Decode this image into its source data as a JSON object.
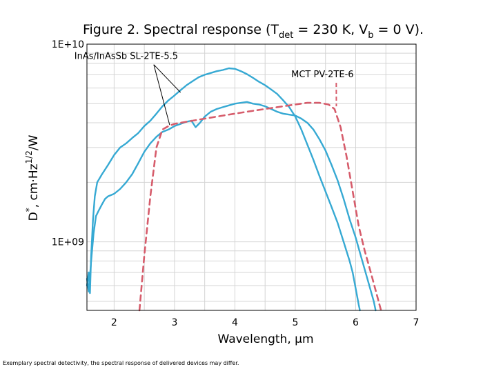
{
  "chart_data": {
    "type": "line",
    "title": {
      "main": "Figure 2. Spectral response (T",
      "sub1": "det",
      "mid": " = 230 K, V",
      "sub2": "b",
      "end": " = 0 V)."
    },
    "xlabel": "Wavelength, µm",
    "ylabel": {
      "d": "D",
      "star": "*",
      "unit": ", cm·Hz",
      "exp": "1/2",
      "tail": "/W"
    },
    "xlim": [
      1.55,
      7
    ],
    "ylim": [
      450000000,
      10000000000
    ],
    "yscale": "log",
    "grid": true,
    "x_ticks": [
      2,
      3,
      4,
      5,
      6,
      7
    ],
    "x_tick_labels": [
      "2",
      "3",
      "4",
      "5",
      "6",
      "7"
    ],
    "y_ticks": [
      1000000000,
      10000000000
    ],
    "y_tick_labels": [
      "1E+09",
      "1E+10"
    ],
    "colors": {
      "sl": "#36a9d3",
      "mct": "#d65c6b",
      "grid": "#d4d4d4",
      "frame": "#000000"
    },
    "series": [
      {
        "name": "InAs/InAsSb SL-2TE-5.5",
        "style": "solid",
        "points": [
          [
            1.55,
            600000000
          ],
          [
            1.58,
            700000000
          ],
          [
            1.6,
            550000000
          ],
          [
            1.62,
            850000000
          ],
          [
            1.65,
            1300000000
          ],
          [
            1.68,
            1700000000
          ],
          [
            1.72,
            2000000000
          ],
          [
            1.8,
            2200000000
          ],
          [
            1.9,
            2450000000
          ],
          [
            2.0,
            2750000000
          ],
          [
            2.1,
            3000000000
          ],
          [
            2.2,
            3150000000
          ],
          [
            2.3,
            3350000000
          ],
          [
            2.4,
            3550000000
          ],
          [
            2.5,
            3850000000
          ],
          [
            2.6,
            4100000000
          ],
          [
            2.7,
            4450000000
          ],
          [
            2.8,
            4850000000
          ],
          [
            2.9,
            5200000000
          ],
          [
            3.0,
            5500000000
          ],
          [
            3.1,
            5850000000
          ],
          [
            3.2,
            6200000000
          ],
          [
            3.3,
            6500000000
          ],
          [
            3.4,
            6800000000
          ],
          [
            3.5,
            7000000000
          ],
          [
            3.6,
            7150000000
          ],
          [
            3.7,
            7300000000
          ],
          [
            3.8,
            7400000000
          ],
          [
            3.9,
            7550000000
          ],
          [
            4.0,
            7500000000
          ],
          [
            4.1,
            7300000000
          ],
          [
            4.2,
            7050000000
          ],
          [
            4.3,
            6750000000
          ],
          [
            4.4,
            6450000000
          ],
          [
            4.5,
            6200000000
          ],
          [
            4.6,
            5900000000
          ],
          [
            4.7,
            5600000000
          ],
          [
            4.8,
            5200000000
          ],
          [
            4.9,
            4800000000
          ],
          [
            5.0,
            4300000000
          ],
          [
            5.1,
            3700000000
          ],
          [
            5.2,
            3100000000
          ],
          [
            5.3,
            2600000000
          ],
          [
            5.4,
            2150000000
          ],
          [
            5.5,
            1800000000
          ],
          [
            5.6,
            1500000000
          ],
          [
            5.7,
            1250000000
          ],
          [
            5.8,
            1000000000
          ],
          [
            5.9,
            800000000
          ],
          [
            5.95,
            700000000
          ],
          [
            6.0,
            580000000
          ],
          [
            6.05,
            480000000
          ],
          [
            6.07,
            450000000
          ]
        ]
      },
      {
        "name": "InAs/InAsSb SL-2TE-5.5",
        "style": "solid",
        "points": [
          [
            1.55,
            650000000
          ],
          [
            1.58,
            560000000
          ],
          [
            1.62,
            800000000
          ],
          [
            1.66,
            1100000000
          ],
          [
            1.7,
            1350000000
          ],
          [
            1.75,
            1450000000
          ],
          [
            1.8,
            1550000000
          ],
          [
            1.85,
            1650000000
          ],
          [
            1.9,
            1700000000
          ],
          [
            2.0,
            1750000000
          ],
          [
            2.1,
            1850000000
          ],
          [
            2.2,
            2000000000
          ],
          [
            2.3,
            2200000000
          ],
          [
            2.4,
            2500000000
          ],
          [
            2.5,
            2850000000
          ],
          [
            2.6,
            3150000000
          ],
          [
            2.7,
            3400000000
          ],
          [
            2.8,
            3600000000
          ],
          [
            2.9,
            3700000000
          ],
          [
            3.0,
            3850000000
          ],
          [
            3.1,
            3950000000
          ],
          [
            3.2,
            4050000000
          ],
          [
            3.28,
            4100000000
          ],
          [
            3.35,
            3800000000
          ],
          [
            3.42,
            4000000000
          ],
          [
            3.5,
            4300000000
          ],
          [
            3.6,
            4550000000
          ],
          [
            3.7,
            4700000000
          ],
          [
            3.8,
            4800000000
          ],
          [
            3.9,
            4900000000
          ],
          [
            4.0,
            5000000000
          ],
          [
            4.1,
            5050000000
          ],
          [
            4.2,
            5100000000
          ],
          [
            4.3,
            5000000000
          ],
          [
            4.4,
            4950000000
          ],
          [
            4.5,
            4850000000
          ],
          [
            4.6,
            4700000000
          ],
          [
            4.7,
            4550000000
          ],
          [
            4.8,
            4450000000
          ],
          [
            4.9,
            4400000000
          ],
          [
            5.0,
            4350000000
          ],
          [
            5.1,
            4200000000
          ],
          [
            5.2,
            4000000000
          ],
          [
            5.3,
            3700000000
          ],
          [
            5.4,
            3300000000
          ],
          [
            5.5,
            2900000000
          ],
          [
            5.6,
            2450000000
          ],
          [
            5.7,
            2050000000
          ],
          [
            5.8,
            1650000000
          ],
          [
            5.9,
            1300000000
          ],
          [
            6.0,
            1050000000
          ],
          [
            6.1,
            820000000
          ],
          [
            6.2,
            640000000
          ],
          [
            6.3,
            500000000
          ],
          [
            6.33,
            450000000
          ]
        ]
      },
      {
        "name": "MCT PV-2TE-6",
        "style": "dashed",
        "points": [
          [
            2.42,
            450000000
          ],
          [
            2.5,
            850000000
          ],
          [
            2.6,
            1700000000
          ],
          [
            2.7,
            3000000000
          ],
          [
            2.8,
            3700000000
          ],
          [
            2.9,
            3850000000
          ],
          [
            3.0,
            3950000000
          ],
          [
            3.2,
            4050000000
          ],
          [
            3.5,
            4200000000
          ],
          [
            3.8,
            4350000000
          ],
          [
            4.0,
            4450000000
          ],
          [
            4.2,
            4550000000
          ],
          [
            4.5,
            4700000000
          ],
          [
            4.8,
            4850000000
          ],
          [
            5.0,
            4950000000
          ],
          [
            5.2,
            5050000000
          ],
          [
            5.4,
            5050000000
          ],
          [
            5.55,
            4950000000
          ],
          [
            5.65,
            4700000000
          ],
          [
            5.75,
            3800000000
          ],
          [
            5.85,
            2700000000
          ],
          [
            5.95,
            1800000000
          ],
          [
            6.05,
            1200000000
          ],
          [
            6.15,
            900000000
          ],
          [
            6.25,
            700000000
          ],
          [
            6.35,
            540000000
          ],
          [
            6.42,
            450000000
          ]
        ]
      }
    ],
    "annotations": [
      {
        "text": "InAs/InAsSb SL-2TE-5.5",
        "label_at": [
          2.2,
          8400000000
        ],
        "arrows_to": [
          [
            3.1,
            5700000000
          ],
          [
            2.92,
            3900000000
          ]
        ]
      },
      {
        "text": "MCT PV-2TE-6",
        "label_at": [
          5.45,
          6800000000
        ],
        "arrow_to": [
          5.68,
          4850000000
        ]
      }
    ]
  },
  "footnote": "Exemplary spectral detectivity, the spectral response of delivered devices may differ."
}
